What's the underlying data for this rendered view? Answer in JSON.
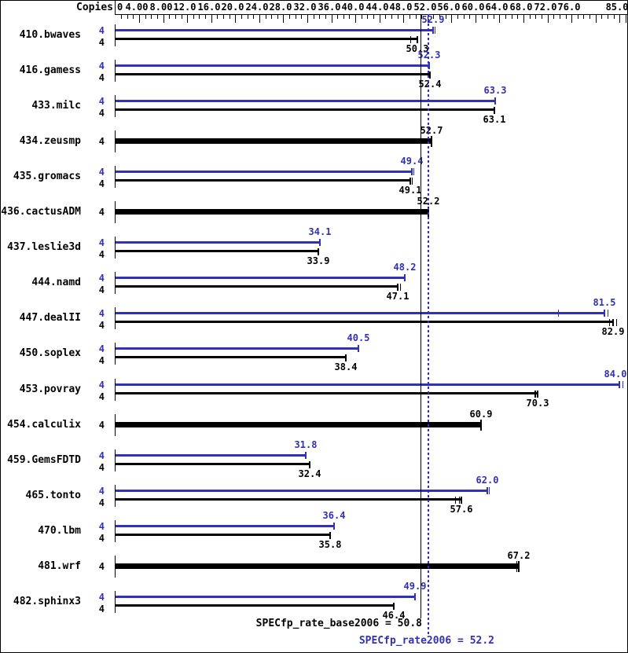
{
  "chart_data": {
    "type": "bar",
    "orientation": "horizontal",
    "copies_header": "Copies",
    "colors": {
      "peak": "#3030b8",
      "base": "#000000"
    },
    "axis": {
      "min": 0,
      "max": 85.5,
      "minor_tick_step": 1,
      "major_tick_step": 4,
      "labels": [
        {
          "v": 0,
          "t": "0"
        },
        {
          "v": 4,
          "t": "4.00"
        },
        {
          "v": 8,
          "t": "8.00"
        },
        {
          "v": 12,
          "t": "12.0"
        },
        {
          "v": 16,
          "t": "16.0"
        },
        {
          "v": 20,
          "t": "20.0"
        },
        {
          "v": 24,
          "t": "24.0"
        },
        {
          "v": 28,
          "t": "28.0"
        },
        {
          "v": 32,
          "t": "32.0"
        },
        {
          "v": 36,
          "t": "36.0"
        },
        {
          "v": 40,
          "t": "40.0"
        },
        {
          "v": 44,
          "t": "44.0"
        },
        {
          "v": 48,
          "t": "48.0"
        },
        {
          "v": 52,
          "t": "52.0"
        },
        {
          "v": 56,
          "t": "56.0"
        },
        {
          "v": 60,
          "t": "60.0"
        },
        {
          "v": 64,
          "t": "64.0"
        },
        {
          "v": 68,
          "t": "68.0"
        },
        {
          "v": 72,
          "t": "72.0"
        },
        {
          "v": 76,
          "t": "76.0"
        },
        {
          "v": 85,
          "t": "85.0"
        }
      ]
    },
    "benchmarks": [
      {
        "name": "410.bwaves",
        "copies": 4,
        "peak": "52.9",
        "base": "50.3",
        "peak_ticks": [
          53.2
        ],
        "base_ticks": [
          49.2
        ]
      },
      {
        "name": "416.gamess",
        "copies": 4,
        "peak": "52.3",
        "base": "52.4",
        "peak_ticks": [],
        "base_ticks": []
      },
      {
        "name": "433.milc",
        "copies": 4,
        "peak": "63.3",
        "base": "63.1",
        "peak_ticks": [],
        "base_ticks": []
      },
      {
        "name": "434.zeusmp",
        "copies": 4,
        "single": true,
        "base": "52.7",
        "base_ticks": []
      },
      {
        "name": "435.gromacs",
        "copies": 4,
        "peak": "49.4",
        "base": "49.1",
        "peak_ticks": [
          49.7
        ],
        "base_ticks": [
          49.4
        ]
      },
      {
        "name": "436.cactusADM",
        "copies": 4,
        "single": true,
        "base": "52.2",
        "base_ticks": []
      },
      {
        "name": "437.leslie3d",
        "copies": 4,
        "peak": "34.1",
        "base": "33.9",
        "peak_ticks": [],
        "base_ticks": []
      },
      {
        "name": "444.namd",
        "copies": 4,
        "peak": "48.2",
        "base": "47.1",
        "peak_ticks": [],
        "base_ticks": [
          47.4
        ]
      },
      {
        "name": "447.dealII",
        "copies": 4,
        "peak": "81.5",
        "base": "82.9",
        "peak_ticks": [
          73.8,
          82.0
        ],
        "base_ticks": [
          82.3,
          83.4
        ]
      },
      {
        "name": "450.soplex",
        "copies": 4,
        "peak": "40.5",
        "base": "38.4",
        "peak_ticks": [],
        "base_ticks": []
      },
      {
        "name": "453.povray",
        "copies": 4,
        "peak": "84.0",
        "base": "70.3",
        "peak_ticks": [
          84.5
        ],
        "base_ticks": [
          69.8,
          70.0
        ]
      },
      {
        "name": "454.calculix",
        "copies": 4,
        "single": true,
        "base": "60.9",
        "base_ticks": []
      },
      {
        "name": "459.GemsFDTD",
        "copies": 4,
        "peak": "31.8",
        "base": "32.4",
        "peak_ticks": [],
        "base_ticks": []
      },
      {
        "name": "465.tonto",
        "copies": 4,
        "peak": "62.0",
        "base": "57.6",
        "peak_ticks": [
          62.3
        ],
        "base_ticks": [
          56.6,
          57.2
        ]
      },
      {
        "name": "470.lbm",
        "copies": 4,
        "peak": "36.4",
        "base": "35.8",
        "peak_ticks": [],
        "base_ticks": []
      },
      {
        "name": "481.wrf",
        "copies": 4,
        "single": true,
        "base": "67.2",
        "base_ticks": [
          66.8
        ]
      },
      {
        "name": "482.sphinx3",
        "copies": 4,
        "peak": "49.9",
        "base": "46.4",
        "peak_ticks": [],
        "base_ticks": []
      }
    ],
    "reference_lines": [
      {
        "name": "base-mean",
        "label": "SPECfp_rate_base2006 = 50.8",
        "value": 50.8,
        "style": "solid",
        "color": "#000000"
      },
      {
        "name": "overall-mean",
        "label": "SPECfp_rate2006 = 52.2",
        "value": 52.2,
        "style": "dotted",
        "color": "#3030b8"
      }
    ]
  }
}
